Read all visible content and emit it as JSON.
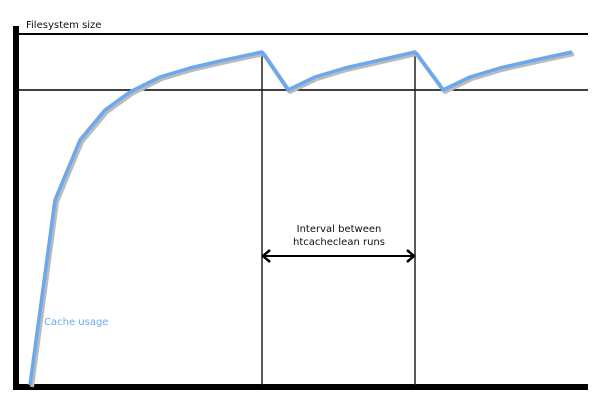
{
  "diagram": {
    "y_axis_label": "Filesystem size",
    "interval_label_line1": "Interval between",
    "interval_label_line2": "htcacheclean runs",
    "series_label": "Cache usage",
    "colors": {
      "cache_line": "#6aa8f0",
      "shadow": "#bbbbbb",
      "axis": "#000000"
    }
  }
}
